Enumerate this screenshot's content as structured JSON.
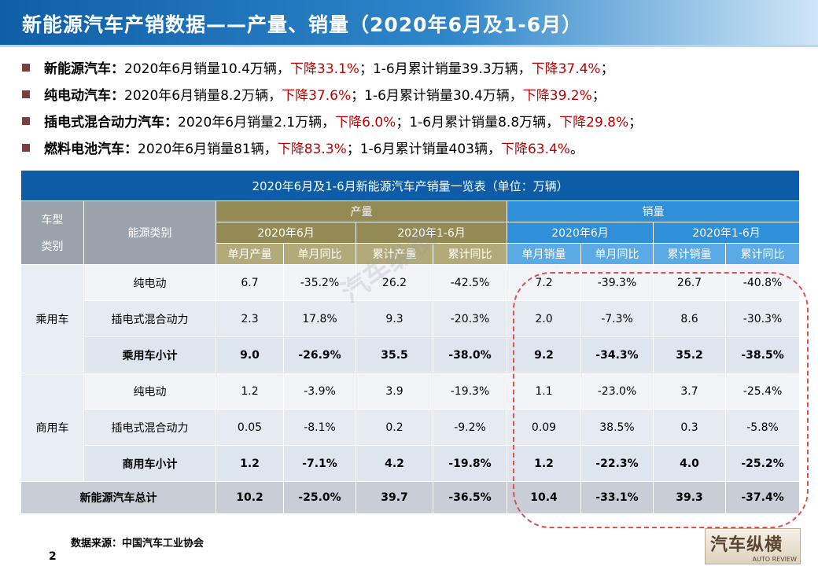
{
  "title": "新能源汽车产销数据——产量、销量（2020年6月及1-6月）",
  "bullets": [
    {
      "name": "新能源汽车：",
      "p1": "2020年6月销量10.4万辆，",
      "d1": "下降33.1%",
      "p2": "；1-6月累计销量39.3万辆，",
      "d2": "下降37.4%",
      "end": "；"
    },
    {
      "name": "纯电动汽车：",
      "p1": "2020年6月销量8.2万辆，",
      "d1": "下降37.6%",
      "p2": "；1-6月累计销量30.4万辆，",
      "d2": "下降39.2%",
      "end": "；"
    },
    {
      "name": "插电式混合动力汽车：",
      "p1": "2020年6月销量2.1万辆，",
      "d1": "下降6.0%",
      "p2": "；1-6月累计销量8.8万辆，",
      "d2": "下降29.8%",
      "end": "；"
    },
    {
      "name": "燃料电池汽车：",
      "p1": "2020年6月销量81辆，",
      "d1": "下降83.3%",
      "p2": "；1-6月累计销量403辆，",
      "d2": "下降63.4%",
      "end": "。"
    }
  ],
  "table": {
    "caption": "2020年6月及1-6月新能源汽车产销量一览表（单位：万辆）",
    "col_vehicle_a": "车型",
    "col_vehicle_b": "类别",
    "col_energy": "能源类别",
    "production": "产量",
    "sales": "销量",
    "month": "2020年6月",
    "ytd": "2020年1-6月",
    "sub_headers": [
      "单月产量",
      "单月同比",
      "累计产量",
      "累计同比",
      "单月销量",
      "单月同比",
      "累计销量",
      "累计同比"
    ],
    "passenger": "乘用车",
    "commercial": "商用车",
    "rows": [
      {
        "energy": "纯电动",
        "v": [
          "6.7",
          "-35.2%",
          "26.2",
          "-42.5%",
          "7.2",
          "-39.3%",
          "26.7",
          "-40.8%"
        ]
      },
      {
        "energy": "插电式混合动力",
        "v": [
          "2.3",
          "17.8%",
          "9.3",
          "-20.3%",
          "2.0",
          "-7.3%",
          "8.6",
          "-30.3%"
        ]
      },
      {
        "energy": "乘用车小计",
        "v": [
          "9.0",
          "-26.9%",
          "35.5",
          "-38.0%",
          "9.2",
          "-34.3%",
          "35.2",
          "-38.5%"
        ]
      },
      {
        "energy": "纯电动",
        "v": [
          "1.2",
          "-3.9%",
          "3.9",
          "-19.3%",
          "1.1",
          "-23.0%",
          "3.7",
          "-25.4%"
        ]
      },
      {
        "energy": "插电式混合动力",
        "v": [
          "0.05",
          "-8.1%",
          "0.2",
          "-9.2%",
          "0.09",
          "38.5%",
          "0.3",
          "-5.8%"
        ]
      },
      {
        "energy": "商用车小计",
        "v": [
          "1.2",
          "-7.1%",
          "4.2",
          "-19.8%",
          "1.2",
          "-22.3%",
          "4.0",
          "-25.2%"
        ]
      }
    ],
    "total_label": "新能源汽车总计",
    "total": [
      "10.2",
      "-25.0%",
      "39.7",
      "-36.5%",
      "10.4",
      "-33.1%",
      "39.3",
      "-37.4%"
    ]
  },
  "source": "数据来源：中国汽车工业协会",
  "page_number": "2",
  "logo": {
    "main": "汽车纵横",
    "sub": "AUTO REVIEW"
  },
  "watermark": "汽车纵横",
  "colors": {
    "title_bar": "#0f5fa6",
    "accent_red": "#c00000",
    "production_header": "#948a54",
    "sales_header": "#2f8fd8"
  }
}
